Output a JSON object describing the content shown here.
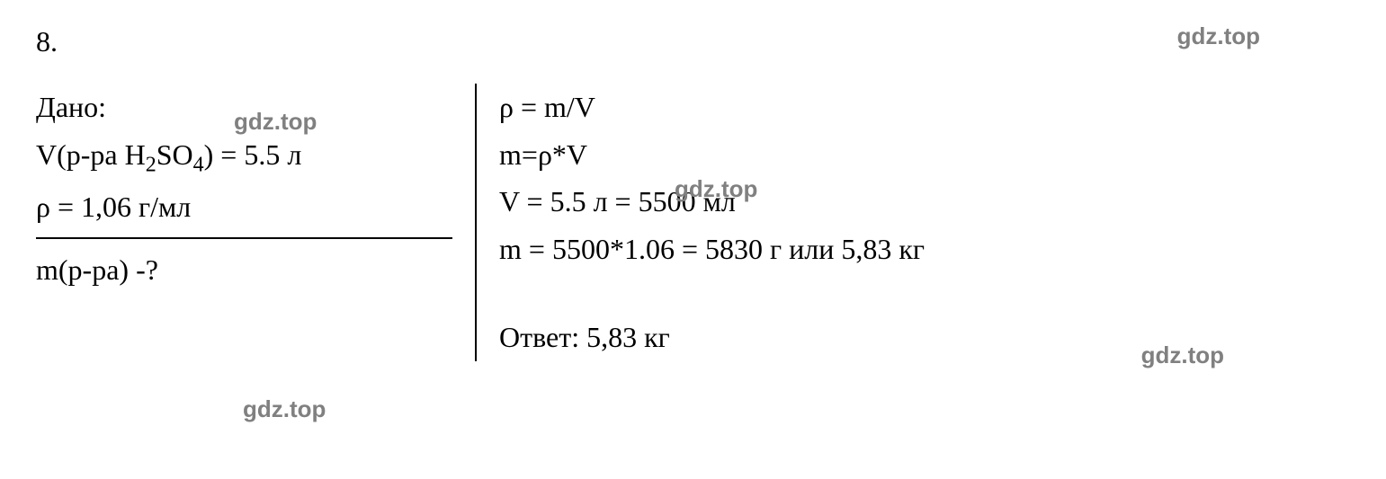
{
  "problem": {
    "number": "8."
  },
  "given": {
    "label": "Дано:",
    "line1_prefix": "V(р-ра H",
    "line1_sub1": "2",
    "line1_mid": "SO",
    "line1_sub2": "4",
    "line1_suffix": ") = 5.5 л",
    "line2": "ρ = 1,06 г/мл"
  },
  "find": {
    "line1": "m(р-ра) -?"
  },
  "solution": {
    "line1": "ρ = m/V",
    "line2": "m=ρ*V",
    "line3": "V = 5.5 л = 5500 мл",
    "line4": "m = 5500*1.06 = 5830 г или 5,83 кг",
    "answer": "Ответ: 5,83 кг"
  },
  "watermark": {
    "text": "gdz.top"
  },
  "styling": {
    "background_color": "#ffffff",
    "text_color": "#000000",
    "watermark_color": "#808080",
    "divider_color": "#000000",
    "font_family": "Times New Roman",
    "watermark_font_family": "Arial",
    "body_fontsize": 32,
    "sub_fontsize": 24,
    "watermark_fontsize": 26,
    "divider_width": 2,
    "line_height": 1.65
  }
}
